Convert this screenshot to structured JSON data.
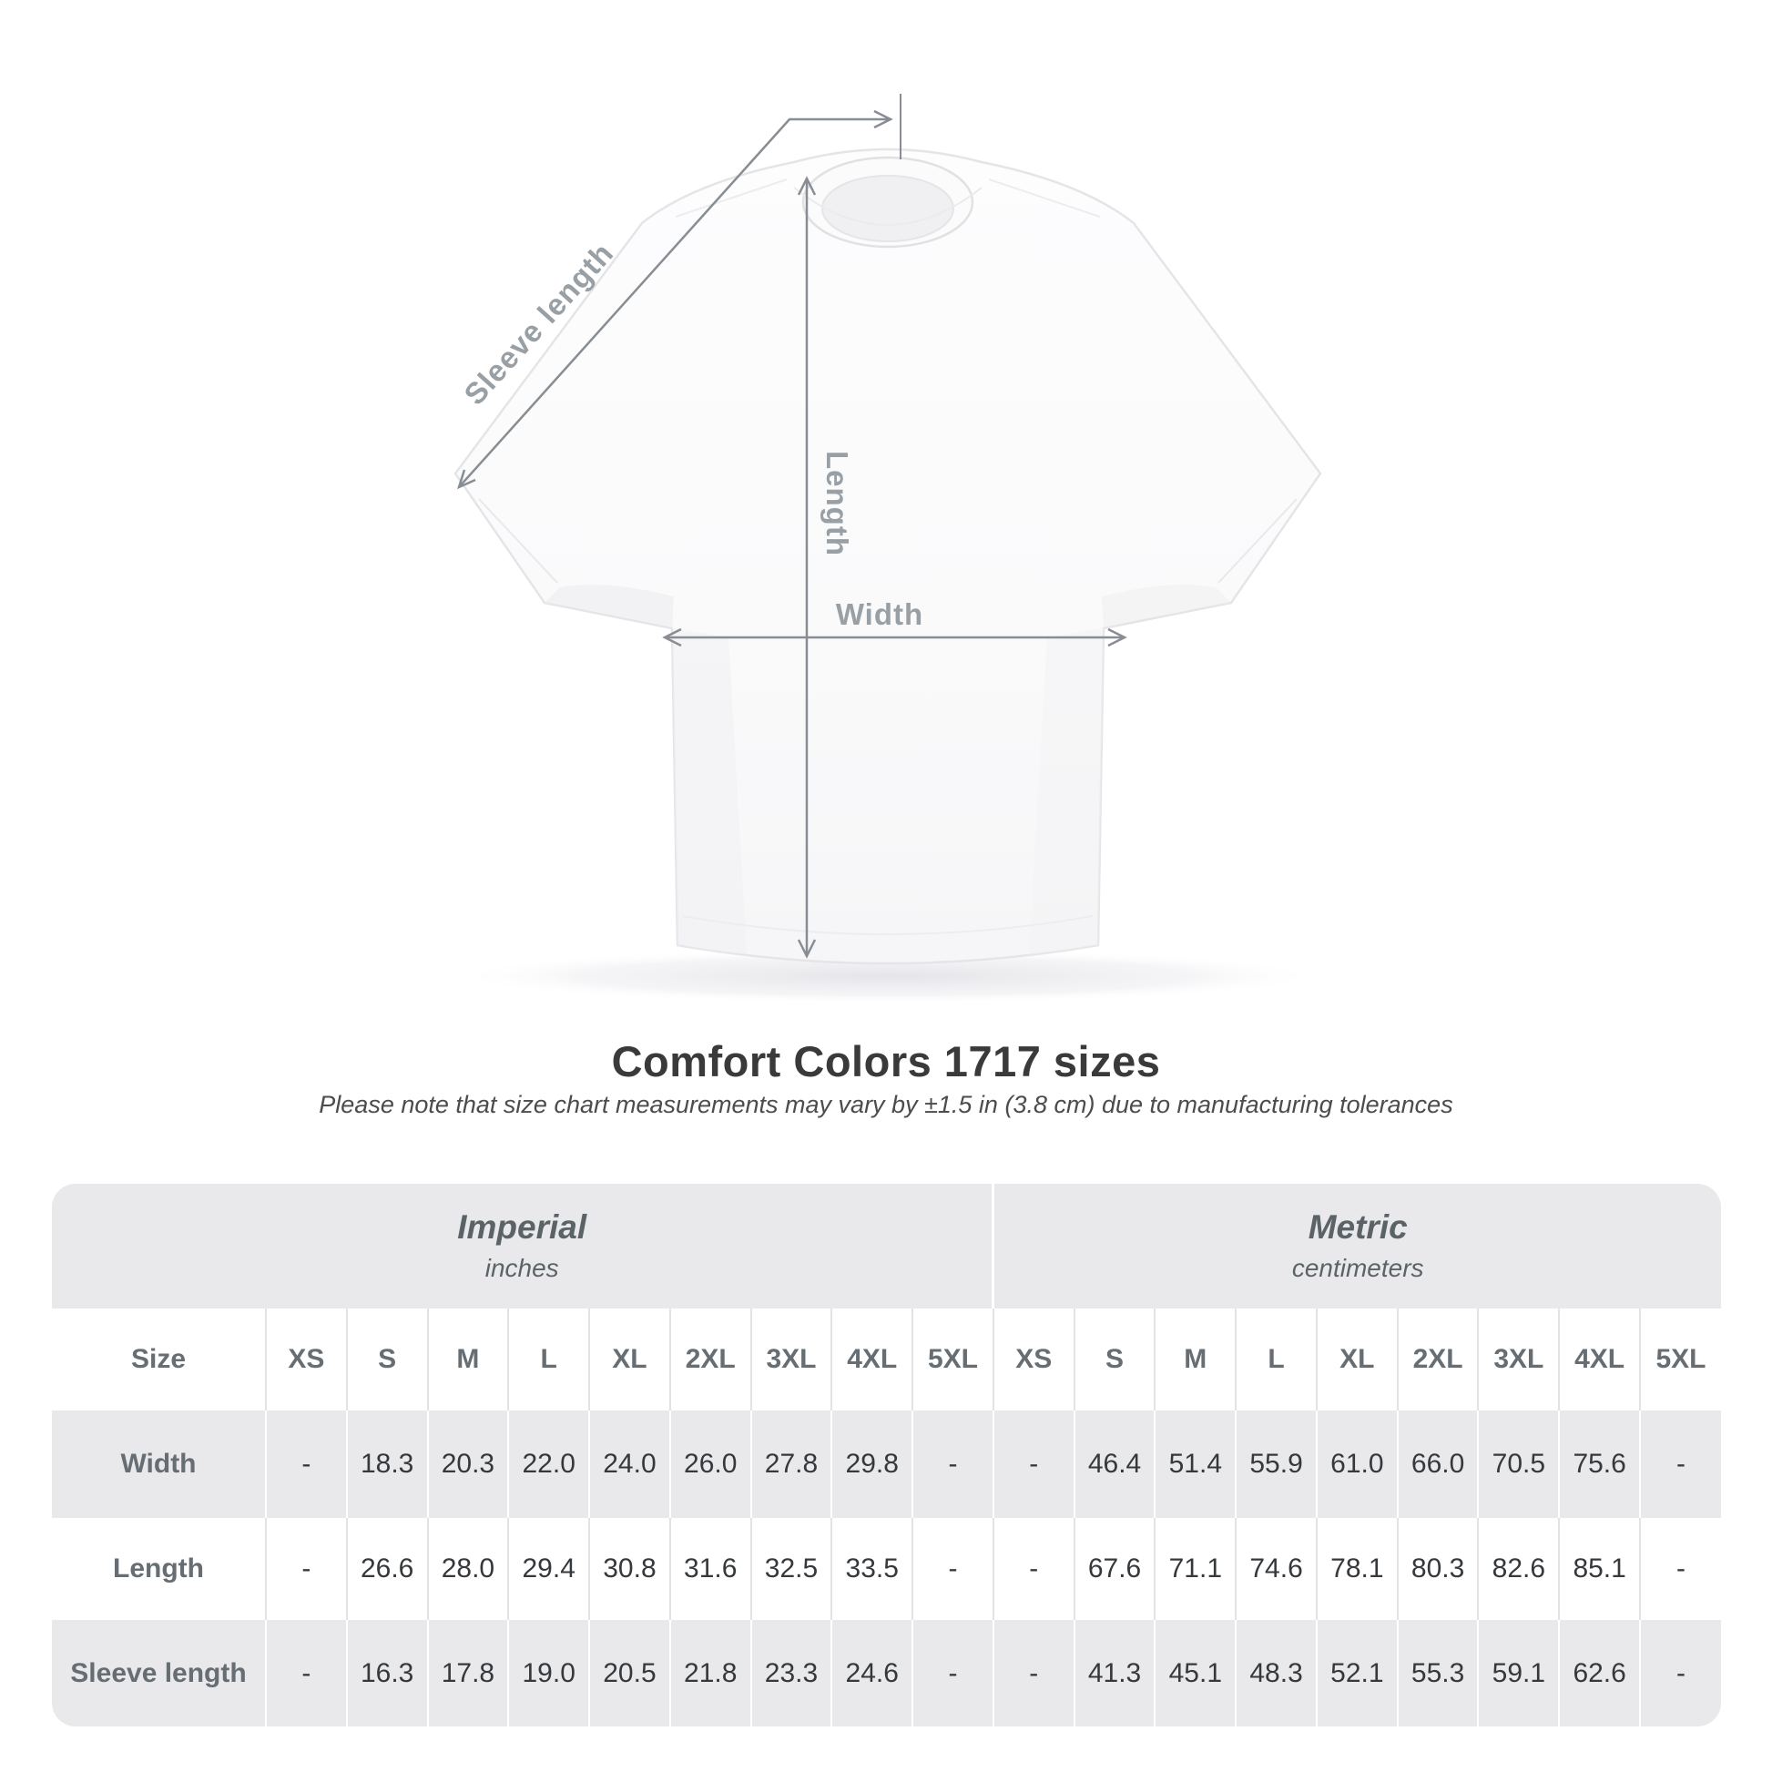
{
  "title": "Comfort Colors 1717 sizes",
  "note": "Please note that size chart measurements may vary by ±1.5 in (3.8 cm) due to manufacturing tolerances",
  "diagram": {
    "sleeve_length_label": "Sleeve length",
    "length_label": "Length",
    "width_label": "Width"
  },
  "colors": {
    "band_gray": "#e9e9eb",
    "label_gray": "#666e73",
    "value_dark": "#35393b",
    "measure_line": "#878d92",
    "measure_label": "#98a0a5"
  },
  "chart_data": {
    "type": "table",
    "title": "Comfort Colors 1717 sizes",
    "groups": [
      {
        "label": "Imperial",
        "sublabel": "inches"
      },
      {
        "label": "Metric",
        "sublabel": "centimeters"
      }
    ],
    "size_header": "Size",
    "sizes": [
      "XS",
      "S",
      "M",
      "L",
      "XL",
      "2XL",
      "3XL",
      "4XL",
      "5XL"
    ],
    "rows": [
      {
        "label": "Width",
        "imperial": [
          "-",
          "18.3",
          "20.3",
          "22.0",
          "24.0",
          "26.0",
          "27.8",
          "29.8",
          "-"
        ],
        "metric": [
          "-",
          "46.4",
          "51.4",
          "55.9",
          "61.0",
          "66.0",
          "70.5",
          "75.6",
          "-"
        ]
      },
      {
        "label": "Length",
        "imperial": [
          "-",
          "26.6",
          "28.0",
          "29.4",
          "30.8",
          "31.6",
          "32.5",
          "33.5",
          "-"
        ],
        "metric": [
          "-",
          "67.6",
          "71.1",
          "74.6",
          "78.1",
          "80.3",
          "82.6",
          "85.1",
          "-"
        ]
      },
      {
        "label": "Sleeve length",
        "imperial": [
          "-",
          "16.3",
          "17.8",
          "19.0",
          "20.5",
          "21.8",
          "23.3",
          "24.6",
          "-"
        ],
        "metric": [
          "-",
          "41.3",
          "45.1",
          "48.3",
          "52.1",
          "55.3",
          "59.1",
          "62.6",
          "-"
        ]
      }
    ]
  }
}
